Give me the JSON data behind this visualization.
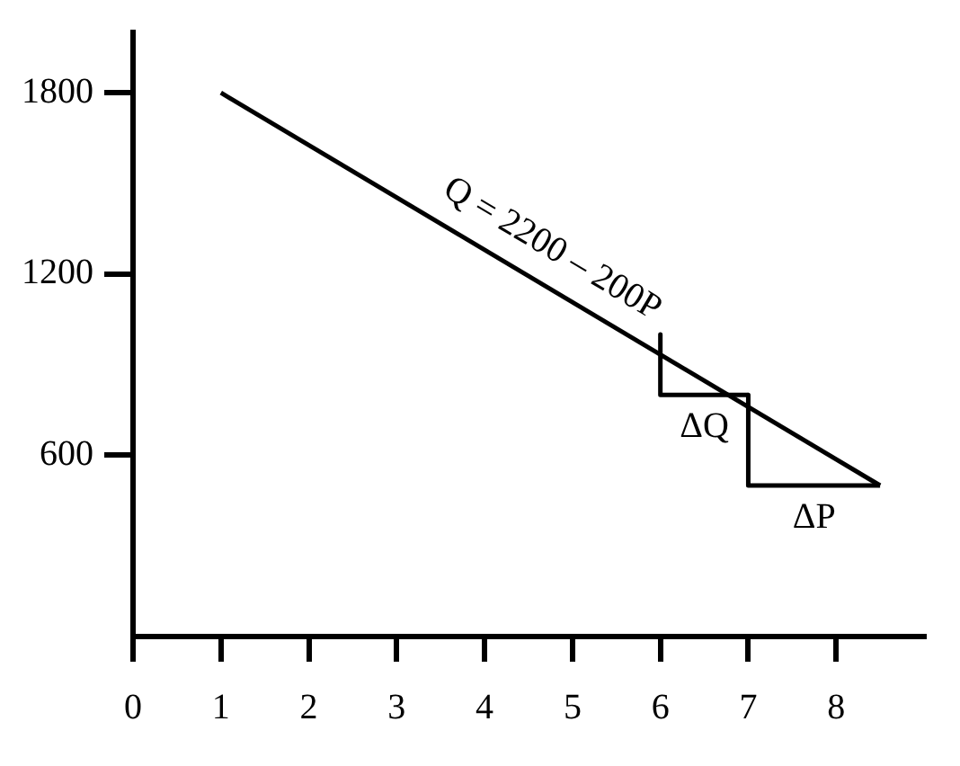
{
  "chart_data": {
    "type": "line",
    "series": [
      {
        "color": "#000000",
        "x": [
          1,
          8.5
        ],
        "values": [
          1800,
          500
        ]
      },
      {
        "color": "#000000",
        "x": [
          6,
          6,
          7
        ],
        "values": [
          1000,
          800,
          800
        ]
      },
      {
        "color": "#000000",
        "x": [
          7,
          7,
          8.5
        ],
        "values": [
          800,
          500,
          500
        ]
      }
    ],
    "xlim": [
      0,
      9
    ],
    "xticks": [
      0,
      1,
      2,
      3,
      4,
      5,
      6,
      7,
      8
    ],
    "ylim": [
      0,
      2000
    ],
    "yticks": [
      600,
      1200,
      1800
    ],
    "grid": false,
    "legend": false,
    "marker": "none",
    "line_style": "solid",
    "annotations": [
      {
        "text": "Q = 2200 – 200P",
        "x": 4.6,
        "y": 1200
      },
      {
        "text": "ΔQ",
        "x": 6.5,
        "y": 800
      },
      {
        "text": "ΔP",
        "x": 7.75,
        "y": 500
      }
    ]
  }
}
